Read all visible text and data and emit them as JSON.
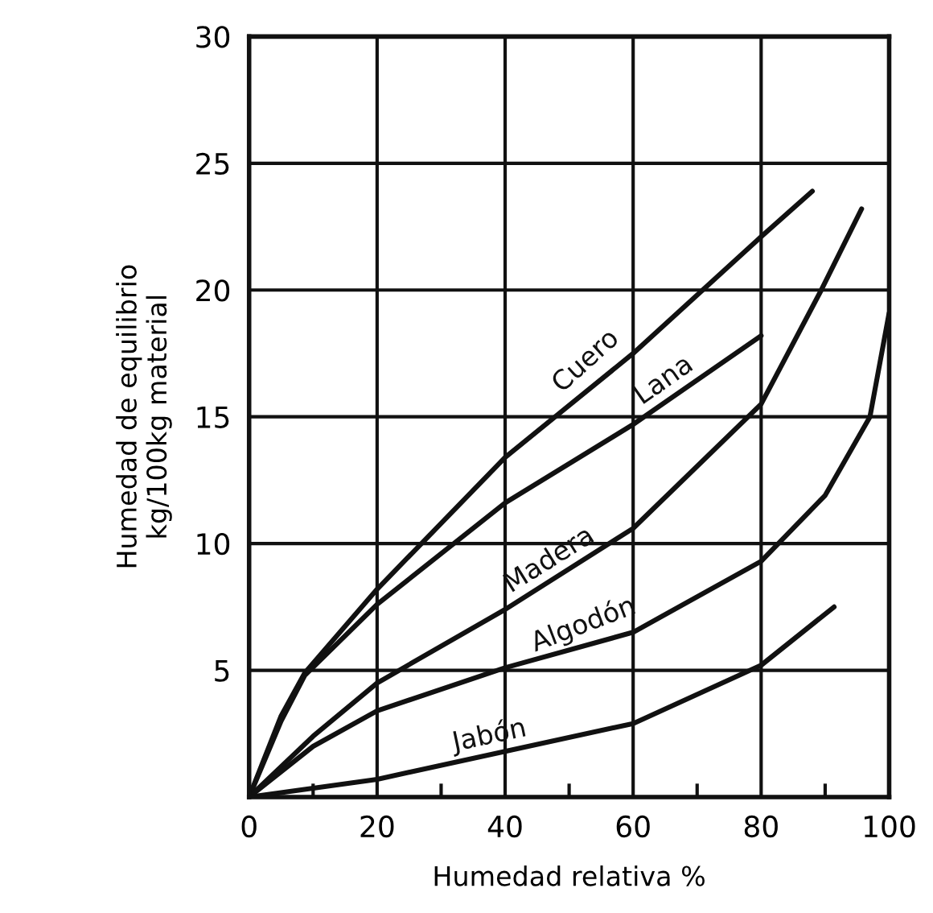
{
  "chart_data": {
    "type": "line",
    "xlabel": "Humedad relativa %",
    "ylabel": "Humedad de equilibrio\nkg/100kg material",
    "xlim": [
      0,
      100
    ],
    "ylim": [
      0,
      30
    ],
    "xticks": [
      0,
      {
        "value": 10,
        "label": null
      },
      20,
      {
        "value": 30,
        "label": null
      },
      40,
      {
        "value": 50,
        "label": null
      },
      60,
      {
        "value": 70,
        "label": null
      },
      80,
      {
        "value": 90,
        "label": null
      },
      100
    ],
    "yticks": [
      5,
      10,
      15,
      20,
      25,
      30
    ],
    "grid": true,
    "legend": false,
    "marker": "none",
    "line_style": "solid",
    "series": [
      {
        "name": "Cuero",
        "color": "#111111",
        "x": [
          0,
          5,
          8.7,
          20,
          40,
          60,
          80,
          88
        ],
        "values": [
          0,
          3.2,
          4.9,
          8.2,
          13.4,
          17.5,
          22.1,
          23.9
        ]
      },
      {
        "name": "Lana",
        "color": "#111111",
        "x": [
          0,
          5,
          8.7,
          20,
          40,
          60,
          80
        ],
        "values": [
          0,
          3.0,
          4.8,
          7.6,
          11.6,
          14.7,
          18.2
        ]
      },
      {
        "name": "Madera",
        "color": "#111111",
        "x": [
          0,
          10,
          20,
          40,
          60,
          80,
          89.4,
          95.7
        ],
        "values": [
          0,
          2.4,
          4.5,
          7.4,
          10.6,
          15.5,
          20,
          23.2
        ]
      },
      {
        "name": "Algodón",
        "color": "#111111",
        "x": [
          0,
          10,
          20,
          40,
          60,
          80,
          90,
          97,
          100
        ],
        "values": [
          0,
          2.0,
          3.4,
          5.1,
          6.5,
          9.3,
          11.9,
          15,
          19.1
        ]
      },
      {
        "name": "Jabón",
        "color": "#111111",
        "x": [
          0,
          20,
          40,
          60,
          80,
          91.4
        ],
        "values": [
          0,
          0.7,
          1.8,
          2.9,
          5.2,
          7.5
        ]
      }
    ]
  }
}
